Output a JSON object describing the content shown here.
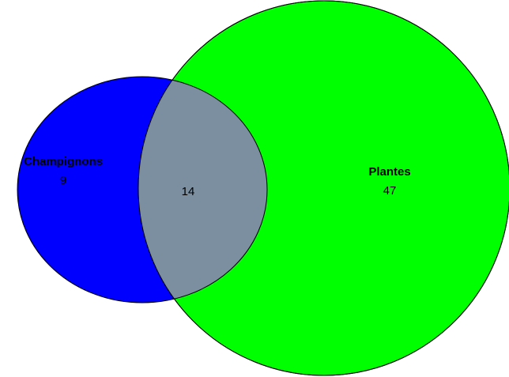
{
  "chart_data": {
    "type": "venn",
    "sets": [
      {
        "name": "Champignons",
        "value": 9,
        "color": "#0000ff"
      },
      {
        "name": "Plantes",
        "value": 47,
        "color": "#00ff00"
      }
    ],
    "intersection": {
      "value": 14,
      "color": "#7b8fa0"
    }
  }
}
